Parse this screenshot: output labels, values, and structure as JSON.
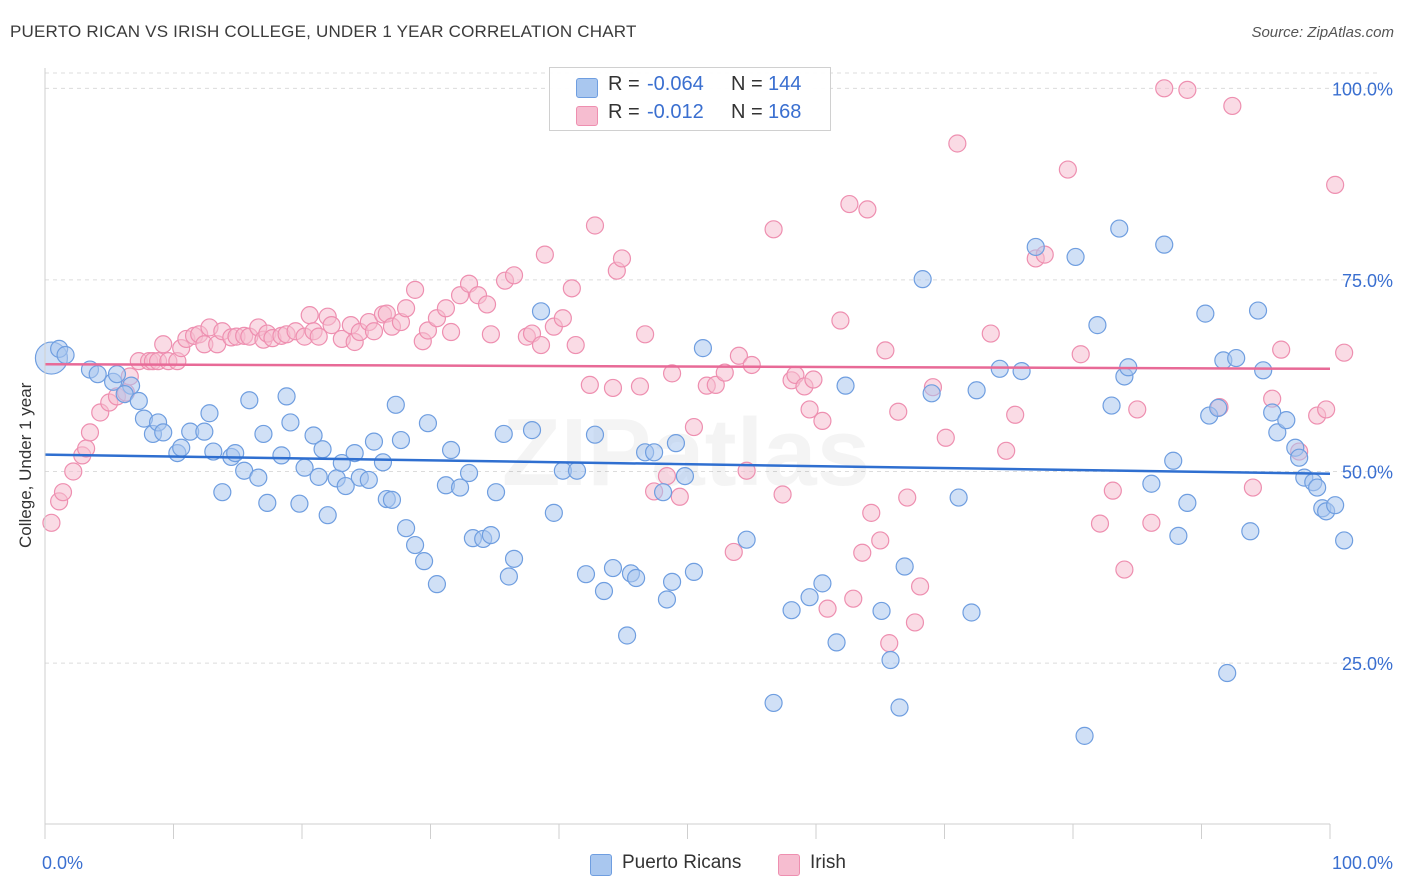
{
  "title": "PUERTO RICAN VS IRISH COLLEGE, UNDER 1 YEAR CORRELATION CHART",
  "source": "Source: ZipAtlas.com",
  "watermark": "ZIPatlas",
  "colors": {
    "blue_fill": "#a9c7ef",
    "blue_stroke": "#6f9ee0",
    "blue_line": "#2f6fd0",
    "pink_fill": "#f6bdd0",
    "pink_stroke": "#ee8fb0",
    "pink_line": "#e86a97",
    "tick_text": "#3a6fd0",
    "grid": "#dcdcdc"
  },
  "correlation_box": {
    "rows": [
      {
        "r_label": "R =",
        "r_value": "-0.064",
        "n_label": "N =",
        "n_value": "144",
        "color": "#a9c7ef"
      },
      {
        "r_label": "R =",
        "r_value": "-0.012",
        "n_label": "N =",
        "n_value": "168",
        "color": "#f6bdd0"
      }
    ]
  },
  "legend": [
    {
      "label": "Puerto Ricans",
      "color": "#a9c7ef"
    },
    {
      "label": "Irish",
      "color": "#f6bdd0"
    }
  ],
  "chart_data": {
    "type": "scatter",
    "title": "PUERTO RICAN VS IRISH COLLEGE, UNDER 1 YEAR CORRELATION CHART",
    "xlabel": "",
    "ylabel": "College, Under 1 year",
    "xlim": [
      0,
      100
    ],
    "ylim": [
      4,
      102
    ],
    "x_tick_labels": [
      "0.0%",
      "100.0%"
    ],
    "y_ticks": [
      25,
      50,
      75,
      100
    ],
    "y_tick_labels": [
      "25.0%",
      "50.0%",
      "75.0%",
      "100.0%"
    ],
    "grid": true,
    "legend_position": "bottom-center",
    "series": [
      {
        "name": "Puerto Ricans",
        "color": "#a9c7ef",
        "trend": {
          "x": [
            0,
            100
          ],
          "y": [
            52.2,
            49.7
          ]
        },
        "points": [
          [
            0.5,
            64.8
          ],
          [
            1.1,
            66.0
          ],
          [
            1.6,
            65.2
          ],
          [
            3.5,
            63.3
          ],
          [
            5.3,
            61.7
          ],
          [
            6.7,
            61.2
          ],
          [
            6.2,
            60.1
          ],
          [
            7.3,
            59.2
          ],
          [
            5.6,
            62.7
          ],
          [
            4.1,
            62.7
          ],
          [
            7.7,
            56.9
          ],
          [
            8.4,
            54.9
          ],
          [
            8.8,
            56.4
          ],
          [
            9.2,
            55.1
          ],
          [
            10.3,
            52.4
          ],
          [
            10.6,
            53.1
          ],
          [
            11.3,
            55.2
          ],
          [
            12.4,
            55.2
          ],
          [
            12.8,
            57.6
          ],
          [
            13.1,
            52.6
          ],
          [
            13.8,
            47.3
          ],
          [
            14.5,
            51.9
          ],
          [
            14.8,
            52.4
          ],
          [
            15.5,
            50.1
          ],
          [
            15.9,
            59.3
          ],
          [
            16.6,
            49.2
          ],
          [
            17.0,
            54.9
          ],
          [
            17.3,
            45.9
          ],
          [
            18.4,
            52.1
          ],
          [
            18.8,
            59.8
          ],
          [
            19.1,
            56.4
          ],
          [
            19.8,
            45.8
          ],
          [
            20.2,
            50.5
          ],
          [
            20.9,
            54.7
          ],
          [
            21.3,
            49.3
          ],
          [
            21.6,
            52.9
          ],
          [
            22.0,
            44.3
          ],
          [
            22.7,
            49.1
          ],
          [
            23.1,
            51.1
          ],
          [
            23.4,
            48.1
          ],
          [
            24.1,
            52.4
          ],
          [
            24.5,
            49.2
          ],
          [
            25.2,
            48.9
          ],
          [
            25.6,
            53.9
          ],
          [
            26.3,
            51.2
          ],
          [
            26.6,
            46.4
          ],
          [
            27.0,
            46.3
          ],
          [
            27.3,
            58.7
          ],
          [
            27.7,
            54.1
          ],
          [
            28.1,
            42.6
          ],
          [
            28.8,
            40.4
          ],
          [
            29.5,
            38.3
          ],
          [
            29.8,
            56.3
          ],
          [
            30.5,
            35.3
          ],
          [
            31.2,
            48.2
          ],
          [
            31.6,
            52.8
          ],
          [
            32.3,
            47.9
          ],
          [
            33.0,
            49.8
          ],
          [
            33.3,
            41.3
          ],
          [
            34.1,
            41.2
          ],
          [
            34.7,
            41.7
          ],
          [
            35.1,
            47.3
          ],
          [
            35.7,
            54.9
          ],
          [
            36.1,
            36.3
          ],
          [
            36.5,
            38.6
          ],
          [
            37.9,
            55.4
          ],
          [
            38.6,
            70.9
          ],
          [
            39.6,
            44.6
          ],
          [
            40.3,
            50.1
          ],
          [
            41.4,
            50.1
          ],
          [
            42.1,
            36.6
          ],
          [
            42.8,
            54.8
          ],
          [
            43.5,
            34.4
          ],
          [
            44.2,
            37.4
          ],
          [
            45.3,
            28.6
          ],
          [
            45.6,
            36.7
          ],
          [
            46.0,
            36.1
          ],
          [
            46.7,
            52.5
          ],
          [
            47.4,
            52.5
          ],
          [
            48.1,
            47.3
          ],
          [
            48.4,
            33.3
          ],
          [
            48.8,
            35.6
          ],
          [
            49.1,
            53.7
          ],
          [
            49.8,
            49.4
          ],
          [
            50.5,
            36.9
          ],
          [
            51.2,
            66.1
          ],
          [
            54.6,
            41.1
          ],
          [
            56.7,
            19.8
          ],
          [
            58.1,
            31.9
          ],
          [
            59.5,
            33.6
          ],
          [
            60.5,
            35.4
          ],
          [
            61.6,
            27.7
          ],
          [
            62.3,
            61.2
          ],
          [
            65.1,
            31.8
          ],
          [
            65.8,
            25.4
          ],
          [
            66.5,
            19.2
          ],
          [
            66.9,
            37.6
          ],
          [
            68.3,
            75.1
          ],
          [
            69.0,
            60.2
          ],
          [
            71.1,
            46.6
          ],
          [
            72.1,
            31.6
          ],
          [
            72.5,
            60.6
          ],
          [
            74.3,
            63.4
          ],
          [
            76.0,
            63.1
          ],
          [
            77.1,
            79.3
          ],
          [
            80.2,
            78.0
          ],
          [
            80.9,
            15.5
          ],
          [
            81.9,
            69.1
          ],
          [
            83.0,
            58.6
          ],
          [
            83.6,
            81.7
          ],
          [
            84.0,
            62.4
          ],
          [
            84.3,
            63.6
          ],
          [
            86.1,
            48.4
          ],
          [
            87.1,
            79.6
          ],
          [
            87.8,
            51.4
          ],
          [
            88.2,
            41.6
          ],
          [
            88.9,
            45.9
          ],
          [
            90.3,
            70.6
          ],
          [
            90.6,
            57.3
          ],
          [
            91.3,
            58.3
          ],
          [
            91.7,
            64.5
          ],
          [
            92.0,
            23.7
          ],
          [
            92.7,
            64.8
          ],
          [
            93.8,
            42.2
          ],
          [
            94.4,
            71.0
          ],
          [
            94.8,
            63.2
          ],
          [
            95.5,
            57.7
          ],
          [
            95.9,
            55.1
          ],
          [
            96.6,
            56.7
          ],
          [
            97.3,
            53.1
          ],
          [
            97.6,
            51.8
          ],
          [
            98.0,
            49.2
          ],
          [
            98.7,
            48.6
          ],
          [
            99.0,
            47.9
          ],
          [
            99.4,
            45.2
          ],
          [
            99.7,
            44.8
          ],
          [
            100.4,
            45.6
          ],
          [
            101.1,
            41.0
          ]
        ]
      },
      {
        "name": "Irish",
        "color": "#f6bdd0",
        "trend": {
          "x": [
            0,
            100
          ],
          "y": [
            64.0,
            63.4
          ]
        },
        "points": [
          [
            0.5,
            43.3
          ],
          [
            1.1,
            46.1
          ],
          [
            1.4,
            47.3
          ],
          [
            2.2,
            50.0
          ],
          [
            2.9,
            52.1
          ],
          [
            3.2,
            53.0
          ],
          [
            3.5,
            55.1
          ],
          [
            4.3,
            57.7
          ],
          [
            5.0,
            59.0
          ],
          [
            5.6,
            59.8
          ],
          [
            6.3,
            60.3
          ],
          [
            6.6,
            62.4
          ],
          [
            7.3,
            64.4
          ],
          [
            8.1,
            64.4
          ],
          [
            8.4,
            64.4
          ],
          [
            8.8,
            64.4
          ],
          [
            9.2,
            66.6
          ],
          [
            9.6,
            64.4
          ],
          [
            10.3,
            64.4
          ],
          [
            10.6,
            66.1
          ],
          [
            11.0,
            67.3
          ],
          [
            11.6,
            67.7
          ],
          [
            12.0,
            67.9
          ],
          [
            12.4,
            66.6
          ],
          [
            12.8,
            68.8
          ],
          [
            13.4,
            66.6
          ],
          [
            13.8,
            68.3
          ],
          [
            14.5,
            67.5
          ],
          [
            14.9,
            67.6
          ],
          [
            15.5,
            67.7
          ],
          [
            15.9,
            67.6
          ],
          [
            16.6,
            68.8
          ],
          [
            17.0,
            67.2
          ],
          [
            17.3,
            68.0
          ],
          [
            17.7,
            67.4
          ],
          [
            18.4,
            67.7
          ],
          [
            18.8,
            67.9
          ],
          [
            19.5,
            68.3
          ],
          [
            20.2,
            67.6
          ],
          [
            20.6,
            70.4
          ],
          [
            20.9,
            68.3
          ],
          [
            21.3,
            67.6
          ],
          [
            22.0,
            70.2
          ],
          [
            22.3,
            69.1
          ],
          [
            23.1,
            67.3
          ],
          [
            23.8,
            69.1
          ],
          [
            24.1,
            66.9
          ],
          [
            24.5,
            68.2
          ],
          [
            25.2,
            69.5
          ],
          [
            25.6,
            68.3
          ],
          [
            26.3,
            70.5
          ],
          [
            26.6,
            70.6
          ],
          [
            27.0,
            68.9
          ],
          [
            27.7,
            69.5
          ],
          [
            28.1,
            71.3
          ],
          [
            28.8,
            73.7
          ],
          [
            29.4,
            67.0
          ],
          [
            29.8,
            68.4
          ],
          [
            30.5,
            70.0
          ],
          [
            31.2,
            71.3
          ],
          [
            31.6,
            68.2
          ],
          [
            32.3,
            73.0
          ],
          [
            33.0,
            74.5
          ],
          [
            33.7,
            73.0
          ],
          [
            34.4,
            71.8
          ],
          [
            34.7,
            67.9
          ],
          [
            35.8,
            74.9
          ],
          [
            36.5,
            75.6
          ],
          [
            37.5,
            67.6
          ],
          [
            37.9,
            68.0
          ],
          [
            38.6,
            66.5
          ],
          [
            38.9,
            78.3
          ],
          [
            39.6,
            68.9
          ],
          [
            40.3,
            70.0
          ],
          [
            41.0,
            73.9
          ],
          [
            41.3,
            66.5
          ],
          [
            42.4,
            61.3
          ],
          [
            42.8,
            82.1
          ],
          [
            44.2,
            60.9
          ],
          [
            44.5,
            76.2
          ],
          [
            44.9,
            77.8
          ],
          [
            46.3,
            61.1
          ],
          [
            46.7,
            67.9
          ],
          [
            47.4,
            47.4
          ],
          [
            48.4,
            49.4
          ],
          [
            48.8,
            62.8
          ],
          [
            49.4,
            46.7
          ],
          [
            50.5,
            55.8
          ],
          [
            51.5,
            61.2
          ],
          [
            52.2,
            61.3
          ],
          [
            52.9,
            62.9
          ],
          [
            53.6,
            39.5
          ],
          [
            54.0,
            65.1
          ],
          [
            54.6,
            50.1
          ],
          [
            55.0,
            63.9
          ],
          [
            56.7,
            81.6
          ],
          [
            57.4,
            47.0
          ],
          [
            58.1,
            61.9
          ],
          [
            58.4,
            62.6
          ],
          [
            59.1,
            61.1
          ],
          [
            59.5,
            58.1
          ],
          [
            59.8,
            62.0
          ],
          [
            60.5,
            56.6
          ],
          [
            60.9,
            32.1
          ],
          [
            61.9,
            69.7
          ],
          [
            62.6,
            84.9
          ],
          [
            62.9,
            33.4
          ],
          [
            63.6,
            39.4
          ],
          [
            64.0,
            84.2
          ],
          [
            64.3,
            44.6
          ],
          [
            65.0,
            41.0
          ],
          [
            65.4,
            65.8
          ],
          [
            65.7,
            27.6
          ],
          [
            66.4,
            57.8
          ],
          [
            67.1,
            46.6
          ],
          [
            67.7,
            30.3
          ],
          [
            68.1,
            35.0
          ],
          [
            69.1,
            61.0
          ],
          [
            70.1,
            54.4
          ],
          [
            71.0,
            92.8
          ],
          [
            73.6,
            68.0
          ],
          [
            74.8,
            52.7
          ],
          [
            75.5,
            57.4
          ],
          [
            77.1,
            77.8
          ],
          [
            77.8,
            78.3
          ],
          [
            79.6,
            89.4
          ],
          [
            80.6,
            65.3
          ],
          [
            82.1,
            43.2
          ],
          [
            83.1,
            47.5
          ],
          [
            84.0,
            37.2
          ],
          [
            85.0,
            58.1
          ],
          [
            86.1,
            43.3
          ],
          [
            87.1,
            100.0
          ],
          [
            88.9,
            99.8
          ],
          [
            91.4,
            58.4
          ],
          [
            92.4,
            97.7
          ],
          [
            94.0,
            47.9
          ],
          [
            95.5,
            59.5
          ],
          [
            96.2,
            65.9
          ],
          [
            97.6,
            52.6
          ],
          [
            99.0,
            57.3
          ],
          [
            99.7,
            58.1
          ],
          [
            100.4,
            87.4
          ],
          [
            101.1,
            65.5
          ]
        ]
      }
    ]
  }
}
